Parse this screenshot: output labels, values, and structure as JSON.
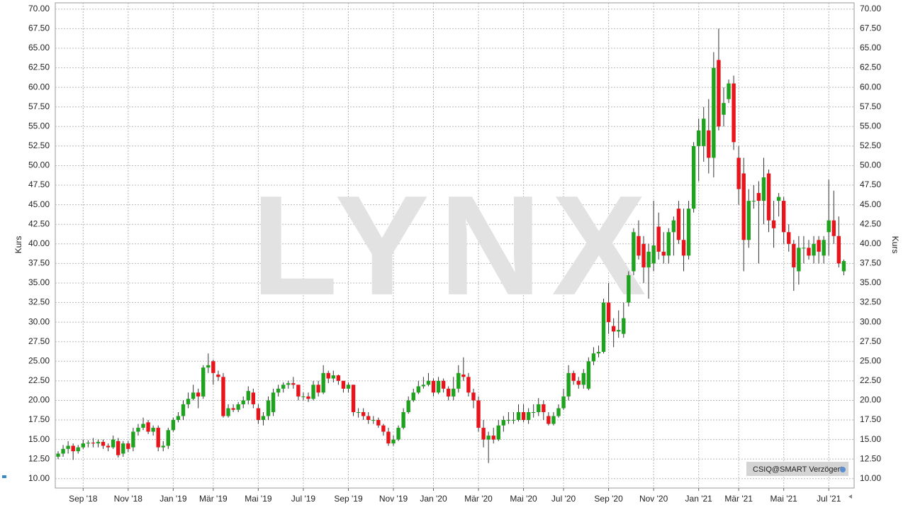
{
  "chart_data": {
    "type": "candlestick",
    "ylabel": "Kurs",
    "watermark": "LYNX",
    "badge": "CSIQ@SMART Verzögert",
    "up_color": "#1fa31f",
    "down_color": "#e8141c",
    "grid": true,
    "ylim": [
      8.8,
      70.8
    ],
    "yticks": [
      {
        "value": 10,
        "label": "10.00"
      },
      {
        "value": 12.5,
        "label": "12.50"
      },
      {
        "value": 15,
        "label": "15.00"
      },
      {
        "value": 17.5,
        "label": "17.50"
      },
      {
        "value": 20,
        "label": "20.00"
      },
      {
        "value": 22.5,
        "label": "22.50"
      },
      {
        "value": 25,
        "label": "25.00"
      },
      {
        "value": 27.5,
        "label": "27.50"
      },
      {
        "value": 30,
        "label": "30.00"
      },
      {
        "value": 32.5,
        "label": "32.50"
      },
      {
        "value": 35,
        "label": "35.00"
      },
      {
        "value": 37.5,
        "label": "37.50"
      },
      {
        "value": 40,
        "label": "40.00"
      },
      {
        "value": 42.5,
        "label": "42.50"
      },
      {
        "value": 45,
        "label": "45.00"
      },
      {
        "value": 47.5,
        "label": "47.50"
      },
      {
        "value": 50,
        "label": "50.00"
      },
      {
        "value": 52.5,
        "label": "52.50"
      },
      {
        "value": 55,
        "label": "55.00"
      },
      {
        "value": 57.5,
        "label": "57.50"
      },
      {
        "value": 60,
        "label": "60.00"
      },
      {
        "value": 62.5,
        "label": "62.50"
      },
      {
        "value": 65,
        "label": "65.00"
      },
      {
        "value": 67.5,
        "label": "67.50"
      },
      {
        "value": 70,
        "label": "70.00"
      }
    ],
    "categories": [
      null,
      null,
      null,
      null,
      null,
      "Sep '18",
      null,
      null,
      null,
      null,
      null,
      null,
      null,
      null,
      "Nov '18",
      null,
      null,
      null,
      null,
      null,
      null,
      null,
      null,
      "Jan '19",
      null,
      null,
      null,
      null,
      null,
      null,
      null,
      "Mär '19",
      null,
      null,
      null,
      null,
      null,
      null,
      null,
      null,
      "Mai '19",
      null,
      null,
      null,
      null,
      null,
      null,
      null,
      null,
      "Jul '19",
      null,
      null,
      null,
      null,
      null,
      null,
      null,
      null,
      "Sep '19",
      null,
      null,
      null,
      null,
      null,
      null,
      null,
      null,
      "Nov '19",
      null,
      null,
      null,
      null,
      null,
      null,
      null,
      "Jan '20",
      null,
      null,
      null,
      null,
      null,
      null,
      null,
      null,
      "Mär '20",
      null,
      null,
      null,
      null,
      null,
      null,
      null,
      null,
      "Mai '20",
      null,
      null,
      null,
      null,
      null,
      null,
      null,
      "Jul '20",
      null,
      null,
      null,
      null,
      null,
      null,
      null,
      null,
      "Sep '20",
      null,
      null,
      null,
      null,
      null,
      null,
      null,
      null,
      "Nov '20",
      null,
      null,
      null,
      null,
      null,
      null,
      null,
      null,
      "Jan '21",
      null,
      null,
      null,
      null,
      null,
      null,
      null,
      "Mär '21",
      null,
      null,
      null,
      null,
      null,
      null,
      null,
      null,
      "Mai '21",
      null,
      null,
      null,
      null,
      null,
      null,
      null,
      null,
      "Jul '21",
      null,
      null,
      null
    ],
    "open": [
      12.8,
      13.2,
      13.8,
      14.2,
      13.5,
      14.0,
      14.5,
      14.6,
      14.5,
      14.7,
      14.2,
      14.0,
      14.8,
      13.2,
      14.5,
      14.0,
      16.0,
      16.5,
      17.2,
      16.0,
      16.5,
      14.0,
      14.2,
      16.2,
      17.5,
      18.0,
      19.5,
      20.2,
      21.0,
      20.5,
      24.2,
      25.0,
      23.3,
      23.0,
      18.0,
      19.0,
      18.8,
      19.5,
      20.0,
      21.0,
      19.0,
      17.5,
      18.0,
      18.5,
      21.0,
      21.5,
      22.0,
      22.2,
      22.0,
      20.5,
      20.5,
      20.2,
      22.0,
      21.0,
      23.5,
      22.8,
      23.2,
      22.5,
      21.5,
      22.0,
      18.5,
      18.5,
      18.0,
      17.5,
      17.5,
      16.8,
      16.0,
      14.5,
      15.0,
      16.5,
      18.5,
      20.0,
      21.0,
      21.8,
      22.0,
      22.5,
      21.0,
      22.5,
      21.5,
      20.5,
      21.5,
      23.3,
      23.0,
      21.0,
      20.0,
      16.5,
      15.0,
      15.5,
      15.0,
      16.8,
      17.5,
      17.5,
      17.5,
      18.5,
      17.5,
      18.5,
      18.5,
      19.5,
      18.0,
      17.0,
      18.0,
      19.0,
      20.5,
      23.5,
      22.5,
      22.0,
      21.5,
      25.0,
      26.0,
      26.2,
      32.5,
      29.5,
      28.8,
      28.5,
      32.5,
      36.5,
      41.0,
      40.0,
      37.0,
      37.5,
      42.2,
      39.0,
      38.5,
      41.5,
      44.5,
      40.5,
      38.5,
      44.5,
      52.5,
      52.5,
      54.5,
      51.0,
      63.5,
      56.5,
      58.5,
      60.5,
      51.0,
      49.0,
      40.5,
      45.5,
      46.5,
      45.5,
      49.0,
      43.0,
      45.5,
      45.5,
      41.5,
      40.0,
      36.5,
      39.5,
      39.5,
      38.5,
      40.5,
      38.5,
      41.5,
      43.0,
      41.0,
      36.5
    ],
    "high": [
      13.5,
      14.3,
      14.8,
      14.5,
      14.3,
      15.0,
      14.9,
      15.2,
      15.0,
      15.0,
      14.5,
      15.5,
      15.2,
      14.8,
      14.8,
      16.5,
      17.0,
      17.8,
      17.5,
      16.8,
      16.8,
      14.8,
      16.5,
      17.8,
      18.5,
      20.0,
      21.0,
      22.0,
      21.5,
      24.5,
      26.0,
      25.2,
      23.8,
      23.5,
      19.5,
      19.5,
      19.8,
      20.5,
      21.8,
      21.5,
      19.5,
      18.5,
      20.5,
      21.5,
      22.0,
      22.3,
      22.5,
      23.0,
      22.0,
      21.0,
      21.0,
      22.5,
      22.5,
      24.5,
      23.8,
      23.8,
      23.3,
      22.5,
      22.3,
      22.0,
      19.0,
      19.0,
      18.5,
      18.0,
      17.8,
      17.0,
      16.5,
      15.5,
      16.8,
      19.0,
      20.5,
      21.5,
      22.5,
      23.0,
      23.5,
      22.8,
      23.0,
      22.8,
      21.8,
      23.0,
      24.5,
      25.5,
      23.5,
      21.5,
      20.5,
      17.5,
      16.0,
      16.5,
      17.5,
      18.0,
      18.5,
      18.5,
      19.5,
      19.5,
      19.0,
      19.5,
      20.3,
      20.0,
      18.5,
      18.5,
      19.5,
      21.5,
      24.5,
      23.8,
      23.0,
      24.0,
      25.5,
      26.8,
      27.0,
      33.0,
      35.0,
      30.5,
      31.5,
      32.5,
      36.5,
      42.0,
      43.0,
      41.0,
      40.0,
      45.5,
      44.0,
      41.5,
      42.0,
      43.5,
      45.5,
      44.5,
      45.5,
      53.0,
      56.0,
      57.5,
      58.5,
      64.5,
      67.5,
      60.0,
      61.0,
      61.5,
      52.5,
      51.0,
      47.0,
      47.5,
      48.0,
      51.0,
      49.5,
      45.5,
      46.5,
      46.0,
      42.5,
      40.5,
      41.0,
      41.0,
      40.5,
      41.0,
      41.0,
      41.0,
      48.2,
      46.8,
      43.5,
      38.0
    ],
    "low": [
      12.5,
      12.8,
      13.2,
      12.4,
      13.2,
      13.8,
      14.0,
      14.0,
      14.0,
      13.8,
      13.5,
      13.8,
      12.7,
      12.8,
      13.4,
      13.5,
      15.5,
      16.2,
      15.7,
      15.5,
      13.5,
      13.5,
      13.8,
      16.0,
      17.2,
      17.5,
      19.0,
      20.0,
      19.0,
      20.2,
      23.5,
      22.0,
      22.5,
      17.8,
      17.8,
      18.5,
      18.5,
      19.0,
      19.5,
      19.0,
      17.0,
      16.8,
      17.5,
      18.0,
      20.5,
      21.0,
      21.5,
      21.5,
      20.0,
      20.0,
      19.8,
      20.0,
      20.5,
      20.8,
      22.2,
      22.3,
      22.0,
      21.0,
      21.0,
      18.0,
      17.8,
      17.5,
      17.0,
      17.0,
      16.5,
      15.5,
      14.2,
      14.2,
      14.8,
      16.3,
      18.3,
      19.8,
      20.8,
      21.5,
      21.8,
      20.5,
      20.8,
      21.0,
      20.0,
      20.0,
      21.0,
      22.5,
      20.5,
      19.0,
      16.0,
      14.0,
      12.0,
      14.5,
      14.8,
      16.0,
      17.0,
      17.0,
      17.3,
      17.2,
      17.0,
      17.8,
      18.0,
      17.5,
      16.8,
      16.8,
      17.8,
      18.8,
      20.0,
      22.0,
      21.5,
      21.5,
      21.3,
      24.5,
      25.5,
      26.0,
      28.5,
      26.8,
      28.0,
      28.0,
      32.0,
      36.0,
      38.0,
      35.0,
      33.0,
      36.5,
      38.0,
      37.5,
      37.5,
      38.5,
      40.0,
      36.5,
      38.0,
      44.0,
      48.0,
      50.5,
      49.0,
      48.5,
      54.5,
      55.0,
      58.0,
      52.0,
      45.0,
      36.5,
      39.5,
      44.5,
      37.5,
      42.5,
      41.5,
      39.5,
      43.5,
      40.0,
      39.0,
      34.0,
      34.8,
      37.5,
      38.0,
      37.5,
      37.5,
      37.5,
      38.5,
      40.0,
      37.0,
      36.0
    ],
    "close": [
      13.2,
      13.8,
      14.2,
      13.5,
      14.0,
      14.5,
      14.6,
      14.5,
      14.7,
      14.2,
      14.0,
      15.0,
      13.0,
      14.5,
      13.8,
      16.0,
      16.5,
      17.0,
      16.0,
      16.5,
      14.0,
      14.2,
      16.2,
      17.5,
      18.0,
      19.5,
      20.2,
      21.0,
      20.5,
      24.2,
      24.5,
      23.5,
      23.0,
      18.0,
      19.0,
      18.8,
      19.5,
      20.0,
      21.2,
      19.5,
      17.5,
      18.0,
      20.0,
      21.0,
      21.5,
      22.0,
      22.2,
      22.0,
      20.5,
      20.5,
      20.2,
      22.0,
      21.0,
      23.5,
      22.8,
      23.2,
      22.5,
      21.5,
      22.0,
      18.5,
      18.5,
      18.0,
      17.5,
      17.5,
      16.8,
      16.0,
      14.5,
      15.0,
      16.5,
      18.5,
      20.0,
      21.0,
      21.8,
      22.0,
      22.5,
      21.0,
      22.5,
      21.5,
      20.5,
      21.5,
      23.5,
      23.0,
      21.0,
      20.0,
      16.5,
      15.0,
      15.5,
      15.0,
      16.8,
      17.5,
      17.5,
      17.5,
      18.5,
      17.5,
      18.5,
      18.5,
      19.5,
      18.5,
      17.0,
      18.0,
      19.0,
      20.5,
      23.5,
      22.5,
      22.0,
      23.5,
      25.0,
      26.0,
      26.2,
      32.5,
      30.0,
      28.8,
      29.0,
      30.5,
      36.0,
      41.5,
      38.5,
      37.0,
      39.0,
      39.8,
      39.0,
      38.5,
      41.5,
      43.0,
      40.5,
      38.5,
      44.5,
      52.5,
      54.5,
      56.0,
      51.0,
      62.5,
      55.0,
      58.0,
      60.5,
      53.0,
      47.0,
      40.5,
      45.5,
      45.5,
      45.5,
      48.5,
      43.0,
      42.0,
      46.0,
      41.5,
      40.0,
      37.0,
      39.5,
      39.5,
      38.5,
      40.0,
      39.0,
      40.5,
      43.0,
      41.0,
      37.5,
      37.8
    ]
  }
}
